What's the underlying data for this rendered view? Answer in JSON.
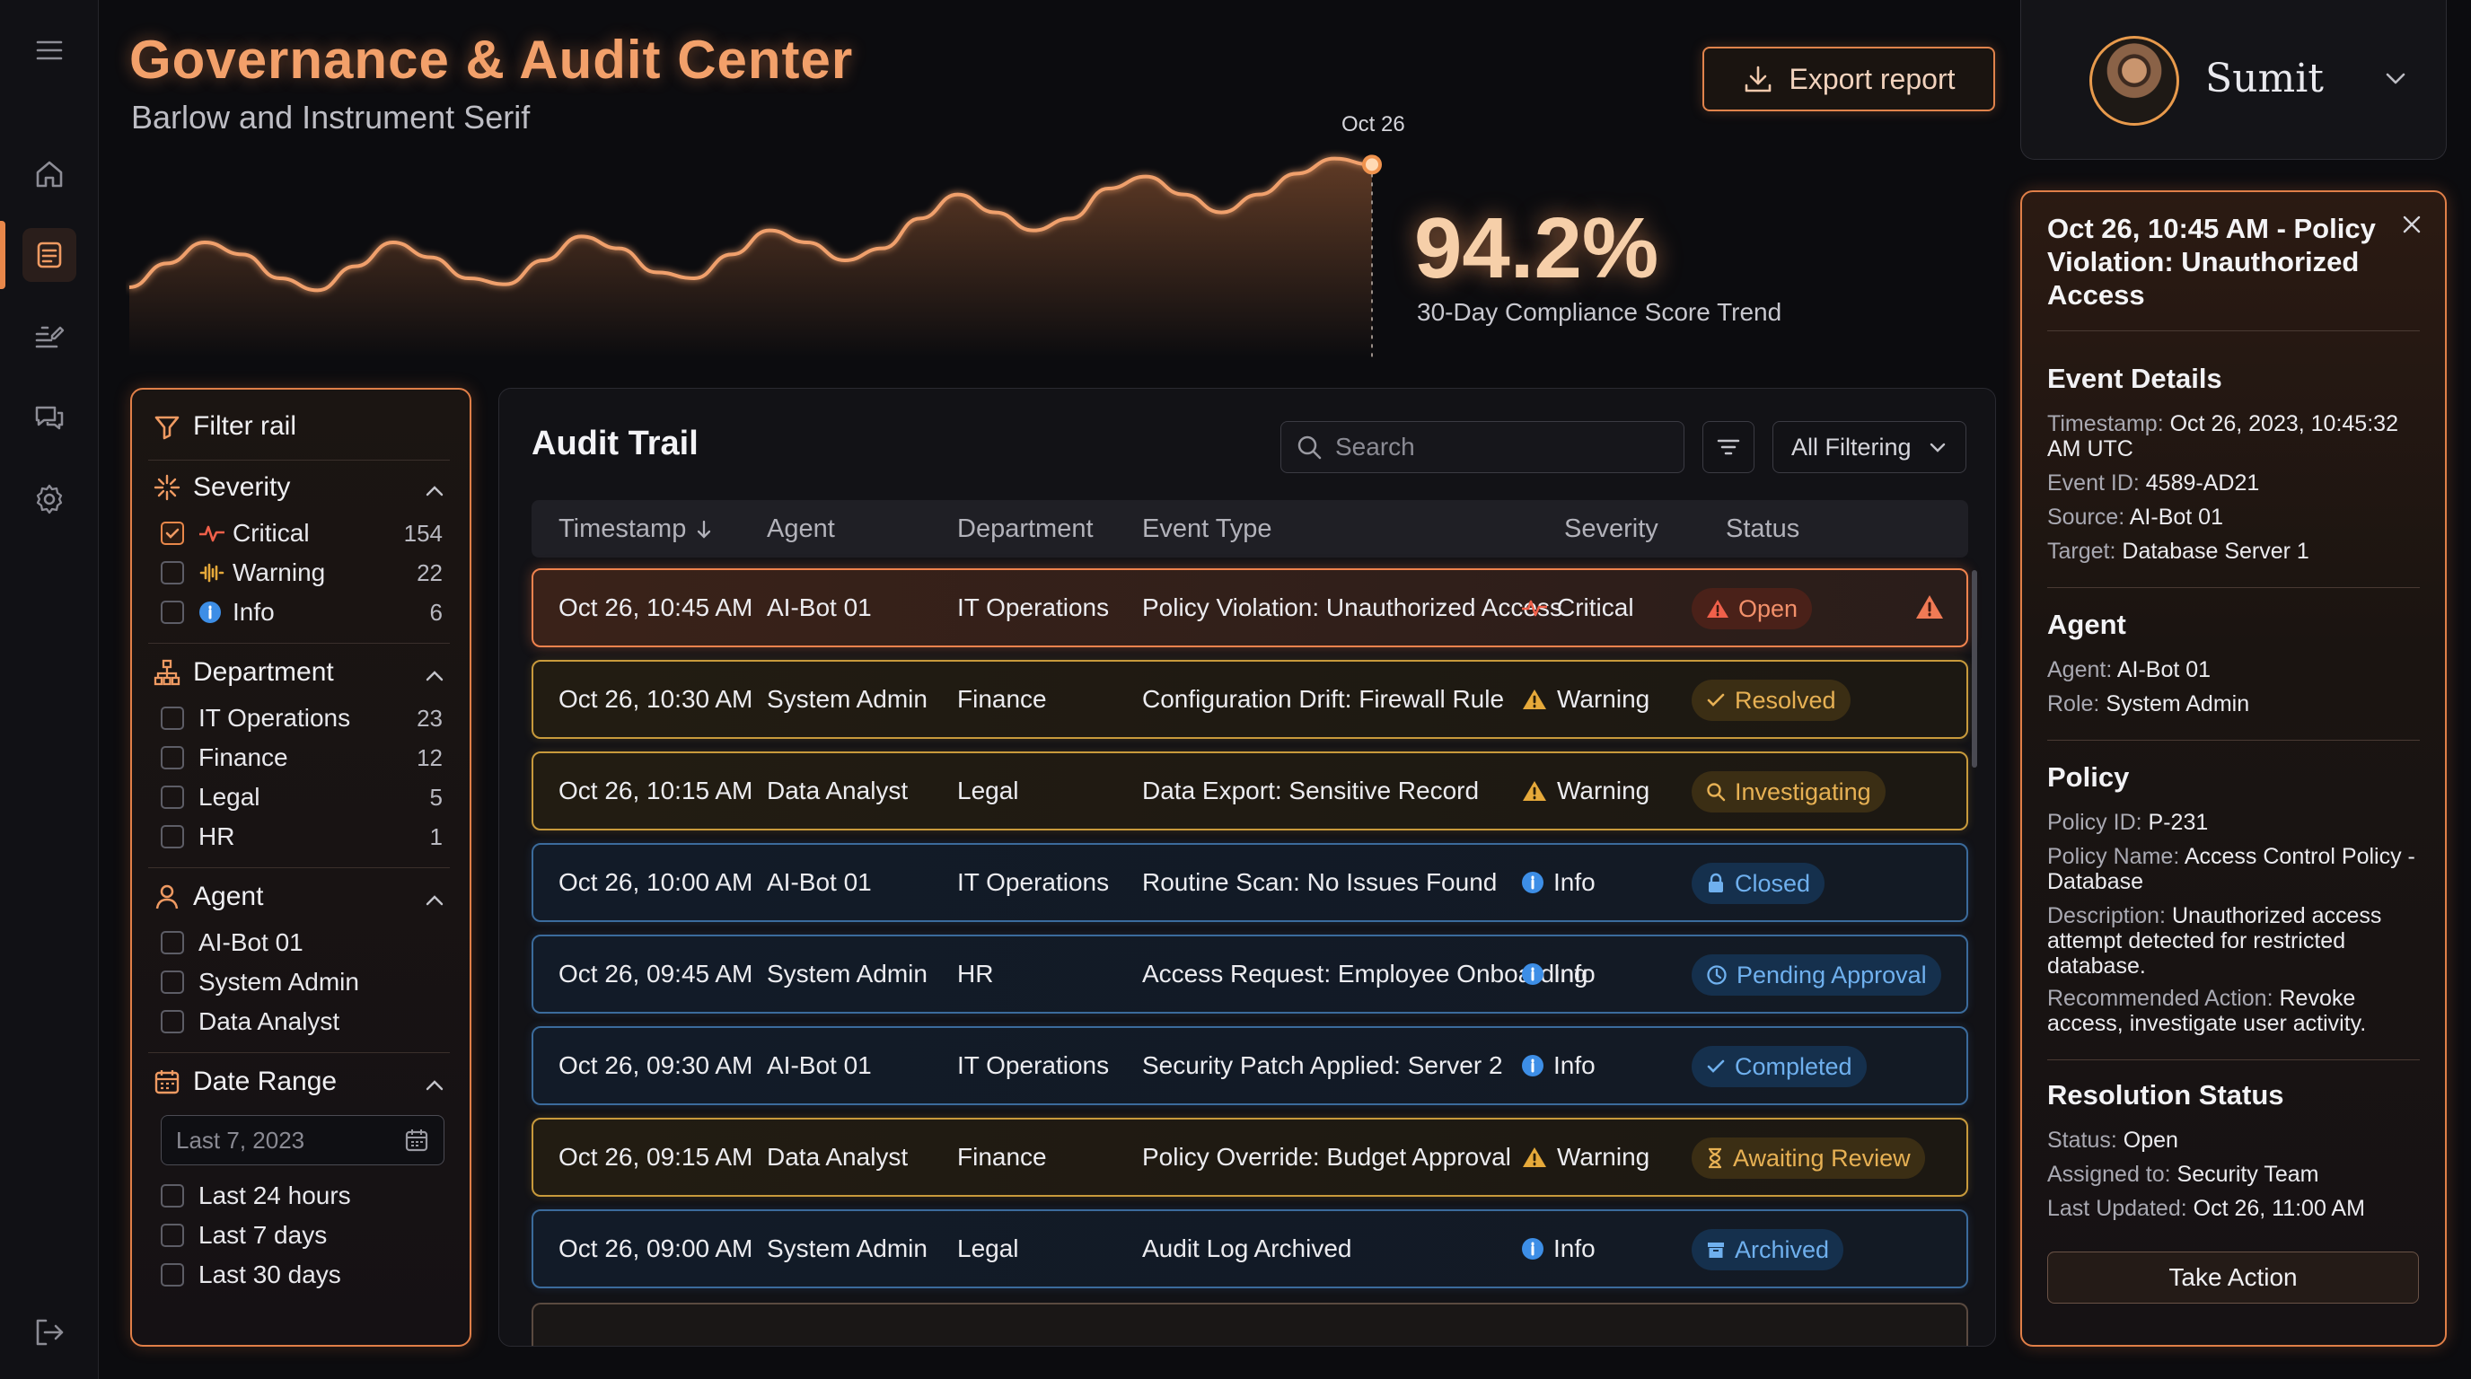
{
  "app": {
    "title": "Governance & Audit Center",
    "subtitle": "Barlow and Instrument Serif",
    "export_label": "Export report"
  },
  "user": {
    "name": "Sumit"
  },
  "sidebar": {
    "items": [
      {
        "name": "menu",
        "icon": "hamburger-icon"
      },
      {
        "name": "home",
        "icon": "home-icon"
      },
      {
        "name": "audit",
        "icon": "document-icon",
        "active": true
      },
      {
        "name": "reports",
        "icon": "list-edit-icon"
      },
      {
        "name": "messages",
        "icon": "chat-icon"
      },
      {
        "name": "settings",
        "icon": "gear-icon"
      },
      {
        "name": "logout",
        "icon": "logout-icon"
      }
    ]
  },
  "chart_data": {
    "type": "area",
    "series": [
      {
        "values": [
          55,
          63,
          70,
          66,
          58,
          54,
          62,
          70,
          65,
          58,
          56,
          64,
          72,
          68,
          60,
          58,
          66,
          74,
          70,
          64,
          68,
          78,
          86,
          80,
          74,
          78,
          88,
          92,
          86,
          80,
          86,
          93,
          98,
          96
        ]
      }
    ],
    "annotation": "Oct 26",
    "axes_visible": false
  },
  "score": {
    "value": "94.2%",
    "label": "30-Day Compliance Score Trend"
  },
  "filter": {
    "title": "Filter rail",
    "severity": {
      "title": "Severity",
      "items": [
        {
          "label": "Critical",
          "count": "154",
          "checked": true
        },
        {
          "label": "Warning",
          "count": "22"
        },
        {
          "label": "Info",
          "count": "6"
        }
      ]
    },
    "department": {
      "title": "Department",
      "items": [
        {
          "label": "IT Operations",
          "count": "23"
        },
        {
          "label": "Finance",
          "count": "12"
        },
        {
          "label": "Legal",
          "count": "5"
        },
        {
          "label": "HR",
          "count": "1"
        }
      ]
    },
    "agent": {
      "title": "Agent",
      "items": [
        {
          "label": "AI-Bot 01"
        },
        {
          "label": "System Admin"
        },
        {
          "label": "Data Analyst"
        }
      ]
    },
    "date": {
      "title": "Date Range",
      "placeholder": "Last 7, 2023",
      "items": [
        {
          "label": "Last 24 hours"
        },
        {
          "label": "Last 7 days"
        },
        {
          "label": "Last 30 days"
        }
      ]
    }
  },
  "audit": {
    "title": "Audit Trail",
    "search_placeholder": "Search",
    "filter_select": "All Filtering",
    "columns": [
      "Timestamp",
      "Agent",
      "Department",
      "Event Type",
      "Severity",
      "Status"
    ],
    "rows": [
      {
        "time": "Oct 26, 10:45 AM",
        "agent": "AI-Bot 01",
        "dept": "IT Operations",
        "event": "Policy Violation: Unauthorized Access",
        "severity": "Critical",
        "status": "Open"
      },
      {
        "time": "Oct 26, 10:30 AM",
        "agent": "System Admin",
        "dept": "Finance",
        "event": "Configuration Drift: Firewall Rule",
        "severity": "Warning",
        "status": "Resolved"
      },
      {
        "time": "Oct 26, 10:15 AM",
        "agent": "Data Analyst",
        "dept": "Legal",
        "event": "Data Export: Sensitive Record",
        "severity": "Warning",
        "status": "Investigating"
      },
      {
        "time": "Oct 26, 10:00 AM",
        "agent": "AI-Bot 01",
        "dept": "IT Operations",
        "event": "Routine Scan: No Issues Found",
        "severity": "Info",
        "status": "Closed"
      },
      {
        "time": "Oct 26, 09:45 AM",
        "agent": "System Admin",
        "dept": "HR",
        "event": "Access Request: Employee Onboarding",
        "severity": "Info",
        "status": "Pending Approval"
      },
      {
        "time": "Oct 26, 09:30 AM",
        "agent": "AI-Bot 01",
        "dept": "IT Operations",
        "event": "Security Patch Applied: Server 2",
        "severity": "Info",
        "status": "Completed"
      },
      {
        "time": "Oct 26, 09:15 AM",
        "agent": "Data Analyst",
        "dept": "Finance",
        "event": "Policy Override: Budget Approval",
        "severity": "Warning",
        "status": "Awaiting Review"
      },
      {
        "time": "Oct 26, 09:00 AM",
        "agent": "System Admin",
        "dept": "Legal",
        "event": "Audit Log Archived",
        "severity": "Info",
        "status": "Archived"
      }
    ]
  },
  "detail": {
    "title": "Oct 26, 10:45 AM - Policy Violation: Unauthorized Access",
    "event_details": {
      "heading": "Event Details",
      "timestamp_label": "Timestamp:",
      "timestamp": "Oct 26, 2023, 10:45:32 AM UTC",
      "event_id_label": "Event ID:",
      "event_id": "4589-AD21",
      "source_label": "Source:",
      "source": "AI-Bot 01",
      "target_label": "Target:",
      "target": "Database Server 1"
    },
    "agent": {
      "heading": "Agent",
      "agent_label": "Agent:",
      "agent": "AI-Bot 01",
      "role_label": "Role:",
      "role": "System Admin"
    },
    "policy": {
      "heading": "Policy",
      "id_label": "Policy ID:",
      "id": "P-231",
      "name_label": "Policy Name:",
      "name": "Access Control Policy - Database",
      "desc_label": "Description:",
      "desc": "Unauthorized access attempt detected for restricted database.",
      "action_label": "Recommended Action:",
      "action": "Revoke access, investigate user activity."
    },
    "resolution": {
      "heading": "Resolution Status",
      "status_label": "Status:",
      "status": "Open",
      "assigned_label": "Assigned to:",
      "assigned": "Security Team",
      "updated_label": "Last Updated:",
      "updated": "Oct 26, 11:00 AM"
    },
    "take_action": "Take Action"
  },
  "colors": {
    "accent": "#e8874a",
    "critical": "#f0604a",
    "warning": "#e6a93a",
    "info": "#3d8ee6"
  }
}
